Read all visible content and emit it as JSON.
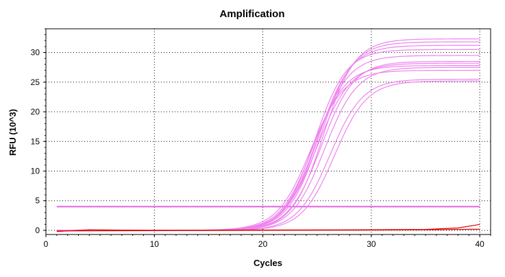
{
  "chart_data": {
    "type": "line",
    "title": "Amplification",
    "xlabel": "Cycles",
    "ylabel": "RFU (10^3)",
    "xlim": [
      0,
      41
    ],
    "ylim": [
      -0.7,
      34
    ],
    "xticks": [
      0,
      10,
      20,
      30,
      40
    ],
    "yticks": [
      0,
      5,
      10,
      15,
      20,
      25,
      30
    ],
    "grid": true,
    "threshold": 4.0,
    "threshold_color": "#e060e0",
    "series_color": "#ee82ee",
    "control_color": "#dd0000",
    "x_range": [
      1,
      40
    ],
    "series": [
      {
        "plateau": 32.3,
        "midpoint": 25.6,
        "slope": 1.45
      },
      {
        "plateau": 31.8,
        "midpoint": 25.3,
        "slope": 1.5
      },
      {
        "plateau": 31.2,
        "midpoint": 25.1,
        "slope": 1.5
      },
      {
        "plateau": 30.5,
        "midpoint": 24.8,
        "slope": 1.45
      },
      {
        "plateau": 29.5,
        "midpoint": 24.9,
        "slope": 1.5
      },
      {
        "plateau": 28.5,
        "midpoint": 25.4,
        "slope": 1.5
      },
      {
        "plateau": 28.2,
        "midpoint": 25.0,
        "slope": 1.55
      },
      {
        "plateau": 27.8,
        "midpoint": 24.6,
        "slope": 1.5
      },
      {
        "plateau": 27.5,
        "midpoint": 25.7,
        "slope": 1.5
      },
      {
        "plateau": 27.0,
        "midpoint": 24.4,
        "slope": 1.55
      },
      {
        "plateau": 25.5,
        "midpoint": 26.2,
        "slope": 1.5
      },
      {
        "plateau": 25.2,
        "midpoint": 26.6,
        "slope": 1.5
      }
    ],
    "controls": [
      {
        "values": [
          [
            1,
            -0.2
          ],
          [
            4,
            0.1
          ],
          [
            6,
            0.05
          ],
          [
            10,
            0
          ],
          [
            20,
            0.05
          ],
          [
            30,
            0.1
          ],
          [
            35,
            0.15
          ],
          [
            38,
            0.4
          ],
          [
            40,
            1.0
          ]
        ]
      },
      {
        "values": [
          [
            1,
            -0.1
          ],
          [
            10,
            -0.05
          ],
          [
            20,
            0
          ],
          [
            30,
            0.05
          ],
          [
            36,
            0.1
          ],
          [
            40,
            0.2
          ]
        ]
      }
    ]
  }
}
